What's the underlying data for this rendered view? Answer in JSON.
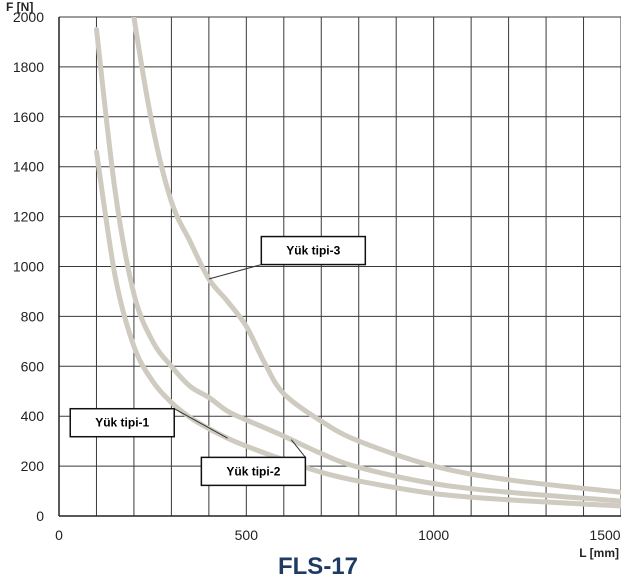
{
  "chart_data": {
    "type": "line",
    "title": "FLS-17",
    "xlabel": "L [mm]",
    "ylabel": "F [N]",
    "xlim": [
      0,
      1500
    ],
    "ylim": [
      0,
      2000
    ],
    "x_ticks": [
      0,
      500,
      1000,
      1500
    ],
    "y_ticks": [
      0,
      200,
      400,
      600,
      800,
      1000,
      1200,
      1400,
      1600,
      1800,
      2000
    ],
    "grid": true,
    "line_color": "#cfcbc1",
    "series": [
      {
        "name": "Yük tipi-1",
        "x": [
          100,
          150,
          200,
          250,
          300,
          350,
          400,
          450,
          500,
          600,
          700,
          800,
          1000,
          1200,
          1500
        ],
        "y": [
          1460,
          960,
          680,
          540,
          455,
          395,
          350,
          312,
          280,
          225,
          175,
          140,
          90,
          65,
          40
        ]
      },
      {
        "name": "Yük tipi-2",
        "x": [
          100,
          150,
          200,
          250,
          300,
          350,
          400,
          450,
          500,
          600,
          700,
          800,
          1000,
          1200,
          1500
        ],
        "y": [
          1950,
          1300,
          890,
          700,
          600,
          520,
          475,
          420,
          385,
          320,
          250,
          195,
          130,
          95,
          60
        ]
      },
      {
        "name": "Yük tipi-3",
        "x": [
          190,
          200,
          250,
          300,
          350,
          400,
          450,
          500,
          550,
          600,
          700,
          800,
          1000,
          1200,
          1500
        ],
        "y": [
          2150,
          2000,
          1560,
          1260,
          1100,
          950,
          860,
          760,
          610,
          490,
          380,
          300,
          200,
          145,
          95
        ]
      }
    ],
    "annotations": [
      {
        "text": "Yük tipi-1",
        "series": "Yük tipi-1",
        "box_pos": [
          30,
          430
        ]
      },
      {
        "text": "Yük tipi-2",
        "series": "Yük tipi-2",
        "box_pos": [
          380,
          235
        ]
      },
      {
        "text": "Yük tipi-3",
        "series": "Yük tipi-3",
        "box_pos": [
          540,
          1120
        ]
      }
    ]
  }
}
